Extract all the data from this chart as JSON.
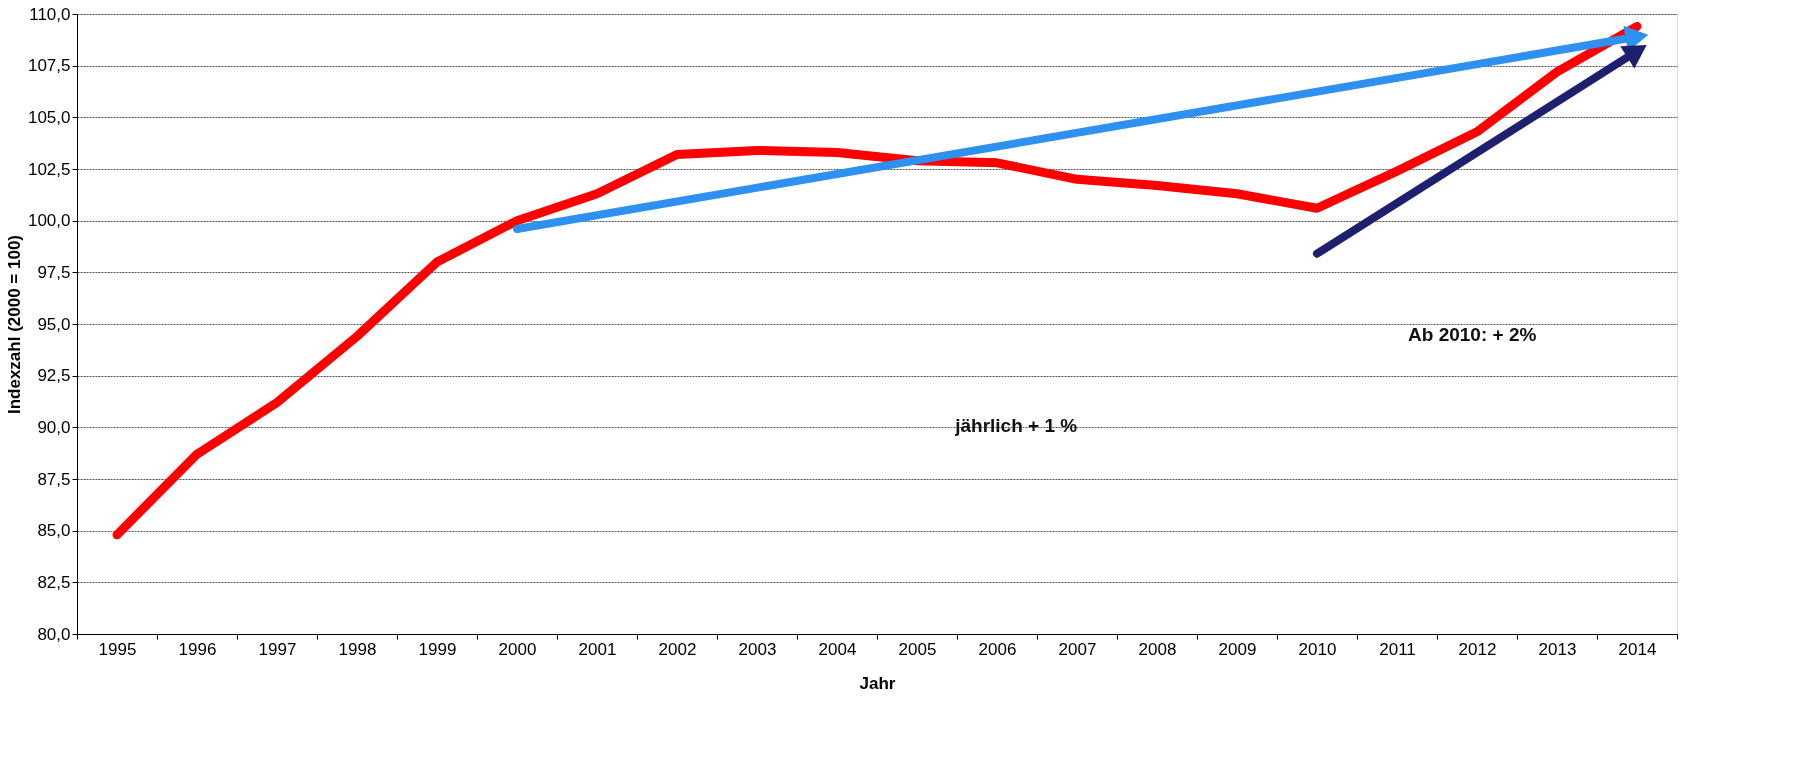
{
  "chart_data": {
    "type": "line",
    "xlabel": "Jahr",
    "ylabel": "Indexzahl (2000 = 100)",
    "categories": [
      "1995",
      "1996",
      "1997",
      "1998",
      "1999",
      "2000",
      "2001",
      "2002",
      "2003",
      "2004",
      "2005",
      "2006",
      "2007",
      "2008",
      "2009",
      "2010",
      "2011",
      "2012",
      "2013",
      "2014"
    ],
    "series": [
      {
        "color": "#ff0000",
        "values": [
          84.8,
          88.7,
          91.2,
          94.4,
          98.0,
          100.0,
          101.3,
          103.2,
          103.4,
          103.3,
          102.9,
          102.8,
          102.0,
          101.7,
          101.3,
          100.6,
          102.4,
          104.3,
          107.2,
          109.4
        ]
      },
      {
        "type": "line",
        "color": "#2e90f0",
        "values": [
          null,
          null,
          null,
          null,
          null,
          99.6,
          null,
          null,
          null,
          null,
          null,
          null,
          null,
          null,
          null,
          null,
          null,
          null,
          null,
          108.9
        ]
      },
      {
        "type": "line",
        "color": "#1f1f70",
        "values": [
          null,
          null,
          null,
          null,
          null,
          null,
          null,
          null,
          null,
          null,
          null,
          null,
          null,
          null,
          null,
          98.4,
          null,
          null,
          null,
          108.2
        ]
      }
    ],
    "ylim": [
      80,
      110
    ],
    "yticks": [
      {
        "value": 80,
        "label": "80,0"
      },
      {
        "value": 82.5,
        "label": "82,5"
      },
      {
        "value": 85,
        "label": "85,0"
      },
      {
        "value": 87.5,
        "label": "87,5"
      },
      {
        "value": 90,
        "label": "90,0"
      },
      {
        "value": 92.5,
        "label": "92,5"
      },
      {
        "value": 95,
        "label": "95,0"
      },
      {
        "value": 97.5,
        "label": "97,5"
      },
      {
        "value": 100,
        "label": "100,0"
      },
      {
        "value": 102.5,
        "label": "102,5"
      },
      {
        "value": 105,
        "label": "105,0"
      },
      {
        "value": 107.5,
        "label": "107,5"
      },
      {
        "value": 110,
        "label": "110,0"
      }
    ],
    "grid": "y",
    "annotations": [
      "jährlich + 1 %",
      "Ab 2010: + 2%"
    ]
  }
}
